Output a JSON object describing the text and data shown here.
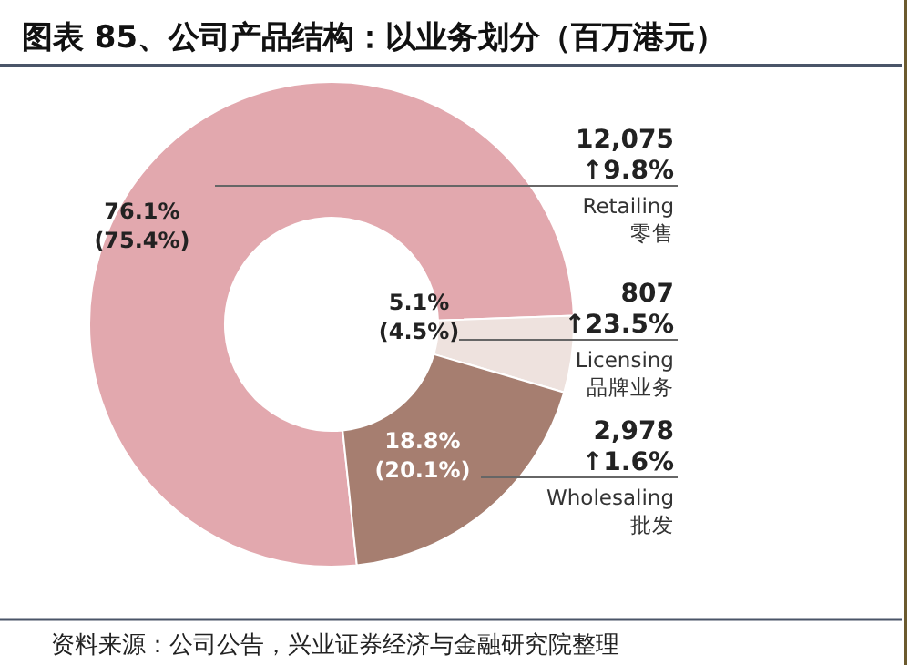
{
  "chart_data": {
    "type": "donut",
    "title": "图表 85、公司产品结构：以业务划分（百万港元）",
    "categories": [
      "Retailing\n零售",
      "Licensing\n品牌业务",
      "Wholesaling\n批发"
    ],
    "values": [
      76.1,
      5.1,
      18.8
    ],
    "colors": [
      "#e2a8ae",
      "#eee2de",
      "#a67e70"
    ],
    "value_labels": [
      "76.1%\n(75.4%)",
      "5.1%\n(4.5%)",
      "18.8%\n(20.1%)"
    ],
    "annotations": [
      "12,075\n↑9.8%",
      "807\n↑23.5%",
      "2,978\n↑1.6%",
      "资料来源：公司公告，兴业证券经济与金融研究院整理"
    ]
  }
}
